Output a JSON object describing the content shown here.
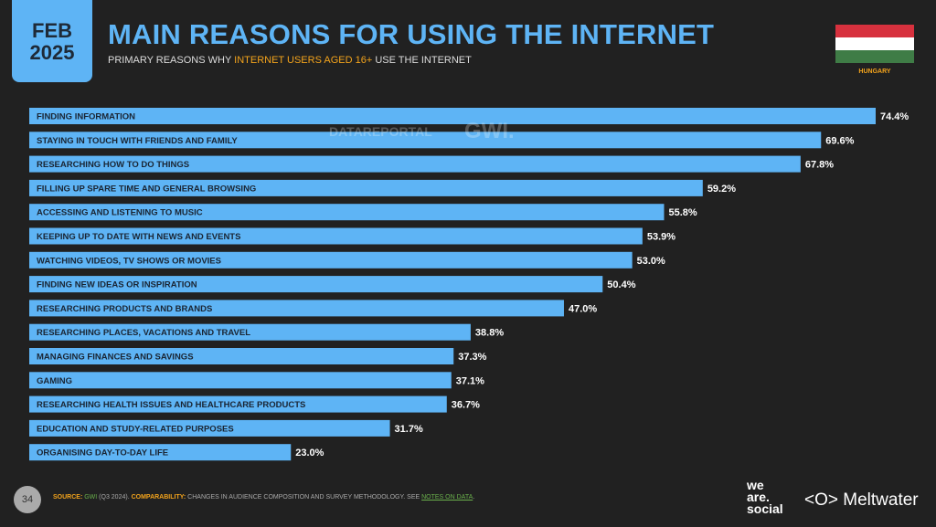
{
  "header": {
    "date_month": "FEB",
    "date_year": "2025",
    "title": "MAIN REASONS FOR USING THE INTERNET",
    "subtitle_pre": "PRIMARY REASONS WHY ",
    "subtitle_hl": "INTERNET USERS AGED 16+",
    "subtitle_post": " USE THE INTERNET",
    "country": "HUNGARY"
  },
  "flag_colors": [
    "#d7313e",
    "#ffffff",
    "#3f7c46"
  ],
  "watermark": {
    "left": "DATAREPORTAL",
    "right": "GWI."
  },
  "footer": {
    "page": "34",
    "source_label": "SOURCE:",
    "source": "GWI",
    "source_detail": " (Q3 2024). ",
    "comp_label": "COMPARABILITY:",
    "comp_text": " CHANGES IN AUDIENCE COMPOSITION AND SURVEY METHODOLOGY. SEE ",
    "notes": "NOTES ON DATA",
    "end": "."
  },
  "brands": {
    "was1": "we",
    "was2": "are.",
    "was3": "social",
    "meltwater": "Meltwater"
  },
  "colors": {
    "bar": "#5eb4f5",
    "accent": "#f4a41c"
  },
  "chart_data": {
    "type": "bar",
    "orientation": "horizontal",
    "title": "MAIN REASONS FOR USING THE INTERNET",
    "unit": "%",
    "xlim": [
      0,
      74.4
    ],
    "categories": [
      "FINDING INFORMATION",
      "STAYING IN TOUCH WITH FRIENDS AND FAMILY",
      "RESEARCHING HOW TO DO THINGS",
      "FILLING UP SPARE TIME AND GENERAL BROWSING",
      "ACCESSING AND LISTENING TO MUSIC",
      "KEEPING UP TO DATE WITH NEWS AND EVENTS",
      "WATCHING VIDEOS, TV SHOWS OR MOVIES",
      "FINDING NEW IDEAS OR INSPIRATION",
      "RESEARCHING PRODUCTS AND BRANDS",
      "RESEARCHING PLACES, VACATIONS AND TRAVEL",
      "MANAGING FINANCES AND SAVINGS",
      "GAMING",
      "RESEARCHING HEALTH ISSUES AND HEALTHCARE PRODUCTS",
      "EDUCATION AND STUDY-RELATED PURPOSES",
      "ORGANISING DAY-TO-DAY LIFE"
    ],
    "values": [
      74.4,
      69.6,
      67.8,
      59.2,
      55.8,
      53.9,
      53.0,
      50.4,
      47.0,
      38.8,
      37.3,
      37.1,
      36.7,
      31.7,
      23.0
    ],
    "labels": [
      "74.4%",
      "69.6%",
      "67.8%",
      "59.2%",
      "55.8%",
      "53.9%",
      "53.0%",
      "50.4%",
      "47.0%",
      "38.8%",
      "37.3%",
      "37.1%",
      "36.7%",
      "31.7%",
      "23.0%"
    ]
  }
}
